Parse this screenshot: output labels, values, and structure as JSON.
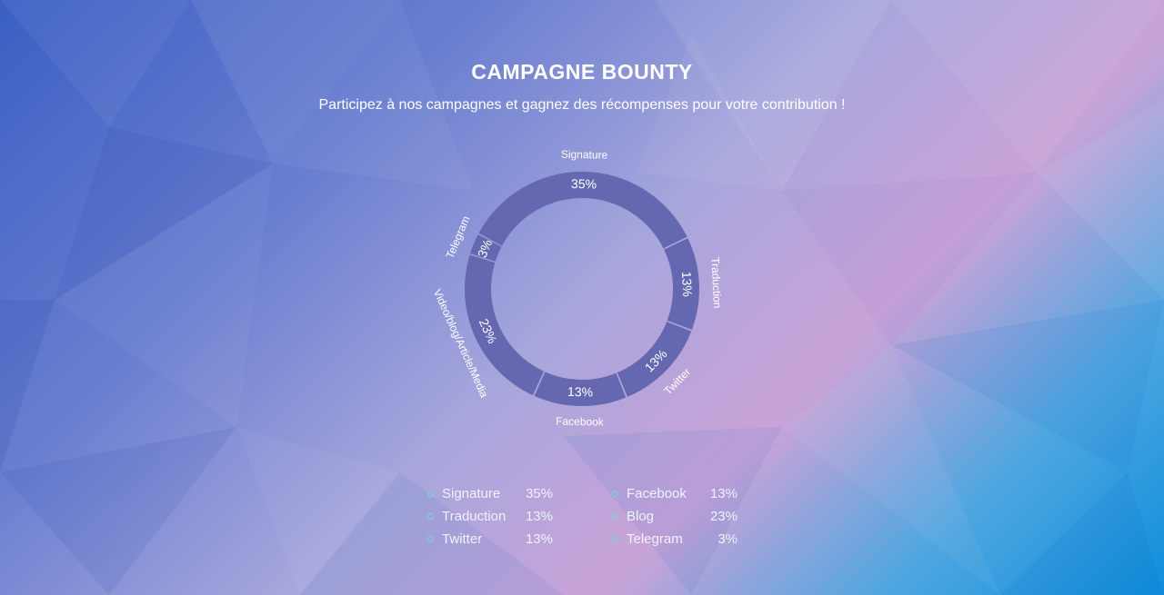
{
  "header": {
    "title": "CAMPAGNE BOUNTY",
    "subtitle": "Participez à nos campagnes et gagnez des récompenses pour votre contribution !"
  },
  "colors": {
    "ring": "#6567b0",
    "legend_dot": "#6ee0c8"
  },
  "chart_data": {
    "type": "pie",
    "categories": [
      "Signature",
      "Traduction",
      "Twitter",
      "Facebook",
      "Video/blog/Article/Media",
      "Telegram"
    ],
    "values": [
      35,
      13,
      13,
      13,
      23,
      3
    ],
    "value_labels": [
      "35%",
      "13%",
      "13%",
      "13%",
      "23%",
      "3%"
    ]
  },
  "legend": {
    "col1": [
      {
        "label": "Signature",
        "value": "35%"
      },
      {
        "label": "Traduction",
        "value": "13%"
      },
      {
        "label": "Twitter",
        "value": "13%"
      }
    ],
    "col2": [
      {
        "label": "Facebook",
        "value": "13%"
      },
      {
        "label": "Blog",
        "value": "23%"
      },
      {
        "label": "Telegram",
        "value": "3%"
      }
    ]
  }
}
